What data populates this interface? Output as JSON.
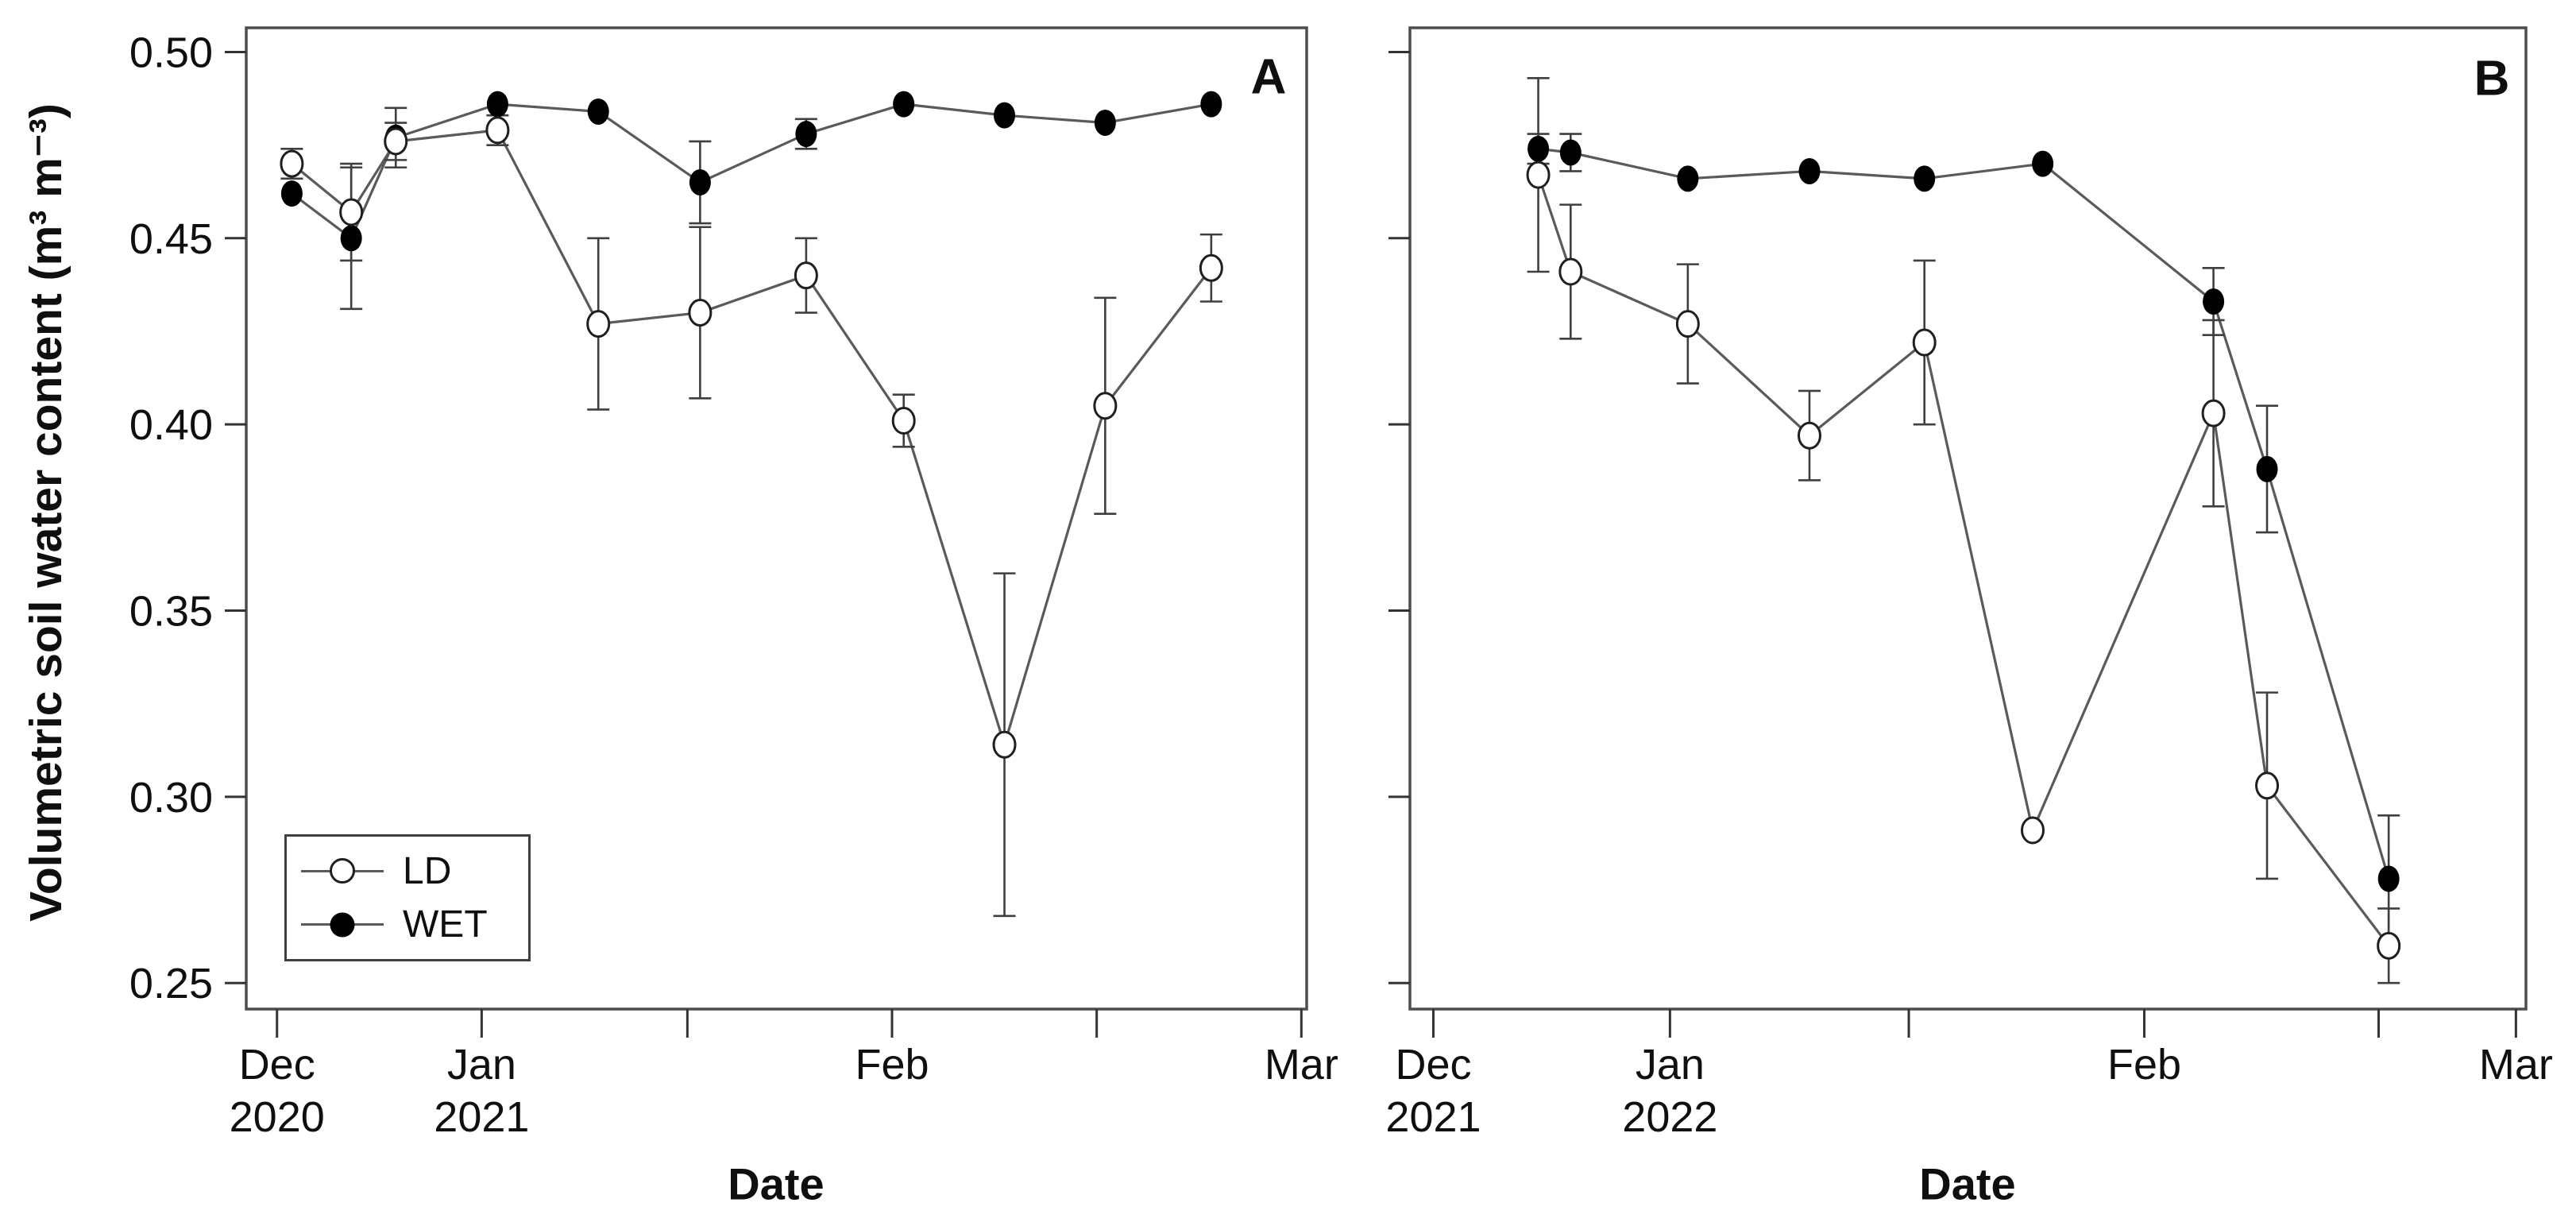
{
  "y_axis_label": "Volumetric soil water content (m³ m⁻³)",
  "legend": {
    "position": "bottom-left-of-panel-A",
    "entries": [
      {
        "label": "LD",
        "marker": "open-circle"
      },
      {
        "label": "WET",
        "marker": "filled-circle"
      }
    ]
  },
  "chart_data": [
    {
      "type": "line",
      "panel_label": "A",
      "xlabel": "Date",
      "ylabel": "Volumetric soil water content (m³ m⁻³)",
      "ylim": [
        0.243,
        0.506
      ],
      "grid": false,
      "y_axis": {
        "show_labels": true,
        "ticks": [
          {
            "value": 0.5,
            "label": "0.50"
          },
          {
            "value": 0.45,
            "label": "0.45"
          },
          {
            "value": 0.4,
            "label": "0.40"
          },
          {
            "value": 0.35,
            "label": "0.35"
          },
          {
            "value": 0.3,
            "label": "0.30"
          },
          {
            "value": 0.25,
            "label": "0.25"
          }
        ]
      },
      "x_axis": {
        "ticks": [
          {
            "frac": 0.029,
            "line1": "Dec",
            "line2": "2020"
          },
          {
            "frac": 0.222,
            "line1": "Jan",
            "line2": "2021"
          },
          {
            "frac": 0.416,
            "line1": "",
            "line2": ""
          },
          {
            "frac": 0.609,
            "line1": "Feb",
            "line2": ""
          },
          {
            "frac": 0.802,
            "line1": "",
            "line2": ""
          },
          {
            "frac": 0.995,
            "line1": "Mar",
            "line2": ""
          }
        ]
      },
      "series": [
        {
          "name": "WET",
          "marker": "filled-circle",
          "x_frac": [
            0.043,
            0.099,
            0.141,
            0.237,
            0.332,
            0.428,
            0.528,
            0.62,
            0.715,
            0.81,
            0.91
          ],
          "values": [
            0.462,
            0.45,
            0.477,
            0.486,
            0.484,
            0.465,
            0.478,
            0.486,
            0.483,
            0.481,
            0.486
          ],
          "errors": [
            0,
            0.019,
            0.008,
            0,
            0,
            0.011,
            0.004,
            0,
            0,
            0,
            0
          ]
        },
        {
          "name": "LD",
          "marker": "open-circle",
          "x_frac": [
            0.043,
            0.099,
            0.141,
            0.237,
            0.332,
            0.428,
            0.528,
            0.62,
            0.715,
            0.81,
            0.91
          ],
          "values": [
            0.47,
            0.457,
            0.476,
            0.479,
            0.427,
            0.43,
            0.44,
            0.401,
            0.314,
            0.405,
            0.442
          ],
          "errors": [
            0.004,
            0.013,
            0.005,
            0.004,
            0.023,
            0.023,
            0.01,
            0.007,
            0.046,
            0.029,
            0.009
          ]
        }
      ]
    },
    {
      "type": "line",
      "panel_label": "B",
      "xlabel": "Date",
      "ylabel": "",
      "ylim": [
        0.243,
        0.506
      ],
      "grid": false,
      "y_axis": {
        "show_labels": false,
        "ticks": [
          {
            "value": 0.5,
            "label": ""
          },
          {
            "value": 0.45,
            "label": ""
          },
          {
            "value": 0.4,
            "label": ""
          },
          {
            "value": 0.35,
            "label": ""
          },
          {
            "value": 0.3,
            "label": ""
          },
          {
            "value": 0.25,
            "label": ""
          }
        ]
      },
      "x_axis": {
        "ticks": [
          {
            "frac": 0.021,
            "line1": "Dec",
            "line2": "2021"
          },
          {
            "frac": 0.233,
            "line1": "Jan",
            "line2": "2022"
          },
          {
            "frac": 0.447,
            "line1": "",
            "line2": ""
          },
          {
            "frac": 0.658,
            "line1": "Feb",
            "line2": ""
          },
          {
            "frac": 0.868,
            "line1": "",
            "line2": ""
          },
          {
            "frac": 0.991,
            "line1": "Mar",
            "line2": ""
          }
        ]
      },
      "series": [
        {
          "name": "WET",
          "marker": "filled-circle",
          "x_frac": [
            0.115,
            0.144,
            0.249,
            0.358,
            0.461,
            0.567,
            0.72,
            0.768,
            0.877
          ],
          "values": [
            0.474,
            0.473,
            0.466,
            0.468,
            0.466,
            0.47,
            0.433,
            0.388,
            0.278
          ],
          "errors": [
            0.004,
            0.005,
            0,
            0,
            0,
            0,
            0.009,
            0.017,
            0.017
          ]
        },
        {
          "name": "LD",
          "marker": "open-circle",
          "x_frac": [
            0.115,
            0.144,
            0.249,
            0.358,
            0.461,
            0.558,
            0.72,
            0.768,
            0.877
          ],
          "values": [
            0.467,
            0.441,
            0.427,
            0.397,
            0.422,
            0.291,
            0.403,
            0.303,
            0.26
          ],
          "errors": [
            0.026,
            0.018,
            0.016,
            0.012,
            0.022,
            0,
            0.025,
            0.025,
            0.01
          ]
        }
      ]
    }
  ]
}
